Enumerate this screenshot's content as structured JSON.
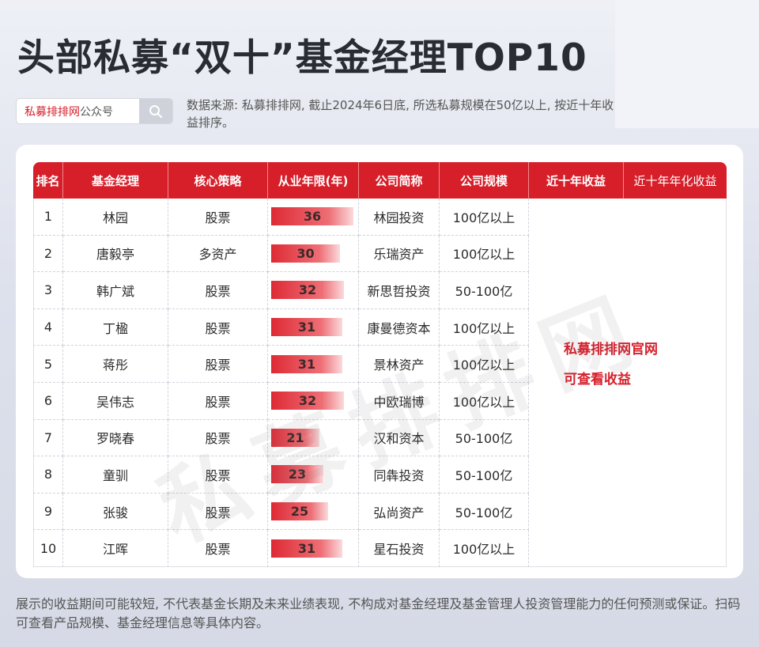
{
  "title": "头部私募“双十”基金经理TOP10",
  "search": {
    "brand": "私募排排网",
    "suffix": "公众号",
    "icon": "search-icon"
  },
  "source_note": "数据来源: 私募排排网, 截止2024年6日底, 所选私募规模在50亿以上, 按近十年收益排序。",
  "table": {
    "headers": [
      "排名",
      "基金经理",
      "核心策略",
      "从业年限(年)",
      "公司简称",
      "公司规模",
      "近十年收益",
      "近十年年化收益"
    ],
    "max_years": 36,
    "rows": [
      {
        "rank": "1",
        "manager": "林园",
        "strategy": "股票",
        "years": 36,
        "company": "林园投资",
        "scale": "100亿以上"
      },
      {
        "rank": "2",
        "manager": "唐毅亭",
        "strategy": "多资产",
        "years": 30,
        "company": "乐瑞资产",
        "scale": "100亿以上"
      },
      {
        "rank": "3",
        "manager": "韩广斌",
        "strategy": "股票",
        "years": 32,
        "company": "新思哲投资",
        "scale": "50-100亿"
      },
      {
        "rank": "4",
        "manager": "丁楹",
        "strategy": "股票",
        "years": 31,
        "company": "康曼德资本",
        "scale": "100亿以上"
      },
      {
        "rank": "5",
        "manager": "蒋彤",
        "strategy": "股票",
        "years": 31,
        "company": "景林资产",
        "scale": "100亿以上"
      },
      {
        "rank": "6",
        "manager": "吴伟志",
        "strategy": "股票",
        "years": 32,
        "company": "中欧瑞博",
        "scale": "100亿以上"
      },
      {
        "rank": "7",
        "manager": "罗晓春",
        "strategy": "股票",
        "years": 21,
        "company": "汉和资本",
        "scale": "50-100亿"
      },
      {
        "rank": "8",
        "manager": "童驯",
        "strategy": "股票",
        "years": 23,
        "company": "同犇投资",
        "scale": "50-100亿"
      },
      {
        "rank": "9",
        "manager": "张骏",
        "strategy": "股票",
        "years": 25,
        "company": "弘尚资产",
        "scale": "50-100亿"
      },
      {
        "rank": "10",
        "manager": "江晖",
        "strategy": "股票",
        "years": 31,
        "company": "星石投资",
        "scale": "100亿以上"
      }
    ],
    "merged_note_line1": "私募排排网官网",
    "merged_note_line2": "可查看收益"
  },
  "watermark": "私募排排网",
  "disclaimer": "展示的收益期间可能较短, 不代表基金长期及未来业绩表现, 不构成对基金经理及基金管理人投资管理能力的任何预测或保证。扫码可查看产品规模、基金经理信息等具体内容。",
  "colors": {
    "header_red": "#d71f2a",
    "note_red": "#d6202b"
  }
}
